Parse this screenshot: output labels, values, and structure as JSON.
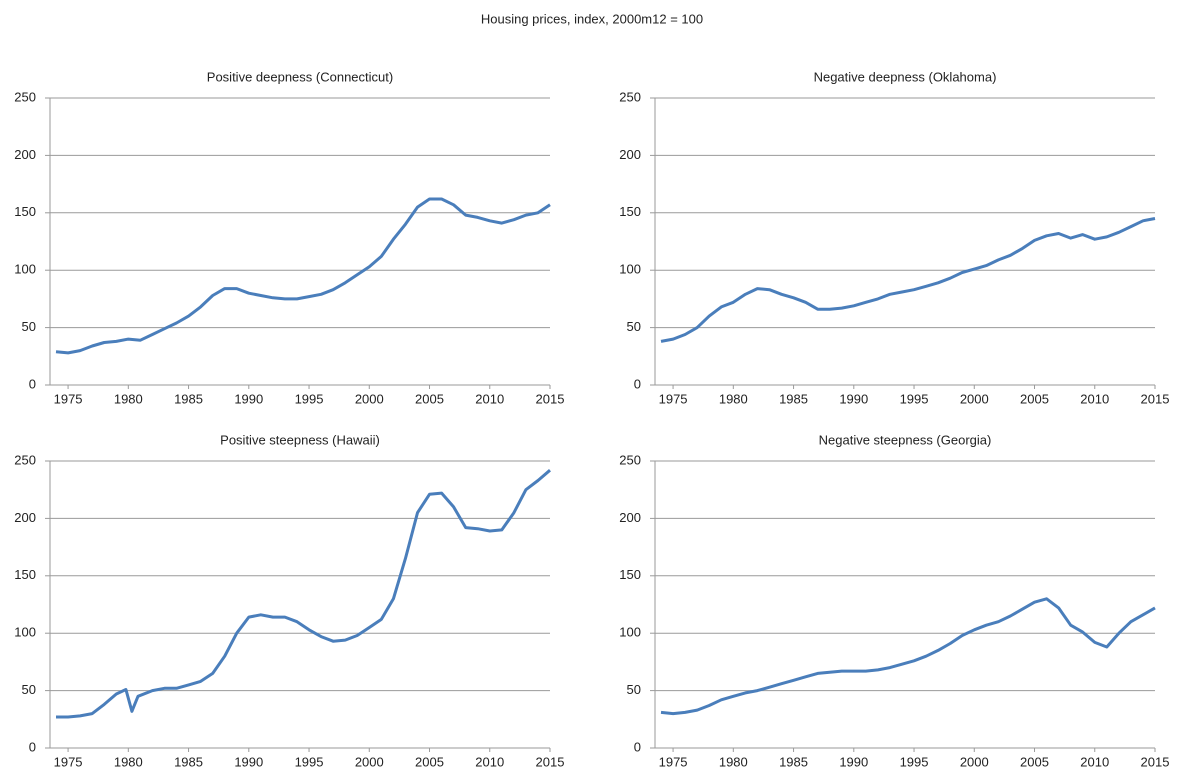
{
  "title": "Housing prices, index, 2000m12 = 100",
  "chart_data": [
    {
      "type": "line",
      "title": "Positive deepness (Connecticut)",
      "color": "#4a7ebb",
      "x": [
        1974,
        1975,
        1976,
        1977,
        1978,
        1979,
        1980,
        1981,
        1982,
        1983,
        1984,
        1985,
        1986,
        1987,
        1988,
        1989,
        1990,
        1991,
        1992,
        1993,
        1994,
        1995,
        1996,
        1997,
        1998,
        1999,
        2000,
        2001,
        2002,
        2003,
        2004,
        2005,
        2006,
        2007,
        2008,
        2009,
        2010,
        2011,
        2012,
        2013,
        2014,
        2015
      ],
      "values": [
        29,
        28,
        30,
        34,
        37,
        38,
        40,
        39,
        44,
        49,
        54,
        60,
        68,
        78,
        84,
        84,
        80,
        78,
        76,
        75,
        75,
        77,
        79,
        83,
        89,
        96,
        103,
        112,
        127,
        140,
        155,
        162,
        162,
        157,
        148,
        146,
        143,
        141,
        144,
        148,
        150,
        157
      ],
      "xlim": [
        1973.5,
        2015
      ],
      "xticks": [
        1975,
        1980,
        1985,
        1990,
        1995,
        2000,
        2005,
        2010,
        2015
      ],
      "ylim": [
        0,
        250
      ],
      "yticks": [
        0,
        50,
        100,
        150,
        200,
        250
      ],
      "grid": true
    },
    {
      "type": "line",
      "title": "Negative deepness (Oklahoma)",
      "color": "#4a7ebb",
      "x": [
        1974,
        1975,
        1976,
        1977,
        1978,
        1979,
        1980,
        1981,
        1982,
        1983,
        1984,
        1985,
        1986,
        1987,
        1988,
        1989,
        1990,
        1991,
        1992,
        1993,
        1994,
        1995,
        1996,
        1997,
        1998,
        1999,
        2000,
        2001,
        2002,
        2003,
        2004,
        2005,
        2006,
        2007,
        2008,
        2009,
        2010,
        2011,
        2012,
        2013,
        2014,
        2015
      ],
      "values": [
        38,
        40,
        44,
        50,
        60,
        68,
        72,
        79,
        84,
        83,
        79,
        76,
        72,
        66,
        66,
        67,
        69,
        72,
        75,
        79,
        81,
        83,
        86,
        89,
        93,
        98,
        101,
        104,
        109,
        113,
        119,
        126,
        130,
        132,
        128,
        131,
        127,
        129,
        133,
        138,
        143,
        145
      ],
      "xlim": [
        1973.5,
        2015
      ],
      "xticks": [
        1975,
        1980,
        1985,
        1990,
        1995,
        2000,
        2005,
        2010,
        2015
      ],
      "ylim": [
        0,
        250
      ],
      "yticks": [
        0,
        50,
        100,
        150,
        200,
        250
      ],
      "grid": true
    },
    {
      "type": "line",
      "title": "Positive steepness (Hawaii)",
      "color": "#4a7ebb",
      "x": [
        1974,
        1975,
        1976,
        1977,
        1978,
        1979,
        1979.8,
        1980.3,
        1980.8,
        1982,
        1983,
        1984,
        1985,
        1986,
        1987,
        1988,
        1989,
        1990,
        1991,
        1992,
        1993,
        1994,
        1995,
        1996,
        1997,
        1998,
        1999,
        2000,
        2001,
        2002,
        2003,
        2004,
        2005,
        2006,
        2007,
        2008,
        2009,
        2010,
        2011,
        2012,
        2013,
        2014,
        2015
      ],
      "values": [
        27,
        27,
        28,
        30,
        38,
        47,
        51,
        32,
        45,
        50,
        52,
        52,
        55,
        58,
        65,
        80,
        100,
        114,
        116,
        114,
        114,
        110,
        103,
        97,
        93,
        94,
        98,
        105,
        112,
        130,
        165,
        205,
        221,
        222,
        210,
        192,
        191,
        189,
        190,
        205,
        225,
        233,
        242
      ],
      "xlim": [
        1973.5,
        2015
      ],
      "xticks": [
        1975,
        1980,
        1985,
        1990,
        1995,
        2000,
        2005,
        2010,
        2015
      ],
      "ylim": [
        0,
        250
      ],
      "yticks": [
        0,
        50,
        100,
        150,
        200,
        250
      ],
      "grid": true
    },
    {
      "type": "line",
      "title": "Negative steepness (Georgia)",
      "color": "#4a7ebb",
      "x": [
        1974,
        1975,
        1976,
        1977,
        1978,
        1979,
        1980,
        1981,
        1982,
        1983,
        1984,
        1985,
        1986,
        1987,
        1988,
        1989,
        1990,
        1991,
        1992,
        1993,
        1994,
        1995,
        1996,
        1997,
        1998,
        1999,
        2000,
        2001,
        2002,
        2003,
        2004,
        2005,
        2006,
        2007,
        2008,
        2009,
        2010,
        2011,
        2012,
        2013,
        2014,
        2015
      ],
      "values": [
        31,
        30,
        31,
        33,
        37,
        42,
        45,
        48,
        50,
        53,
        56,
        59,
        62,
        65,
        66,
        67,
        67,
        67,
        68,
        70,
        73,
        76,
        80,
        85,
        91,
        98,
        103,
        107,
        110,
        115,
        121,
        127,
        130,
        122,
        107,
        101,
        92,
        88,
        100,
        110,
        116,
        122
      ],
      "xlim": [
        1973.5,
        2015
      ],
      "xticks": [
        1975,
        1980,
        1985,
        1990,
        1995,
        2000,
        2005,
        2010,
        2015
      ],
      "ylim": [
        0,
        250
      ],
      "yticks": [
        0,
        50,
        100,
        150,
        200,
        250
      ],
      "grid": true
    }
  ]
}
